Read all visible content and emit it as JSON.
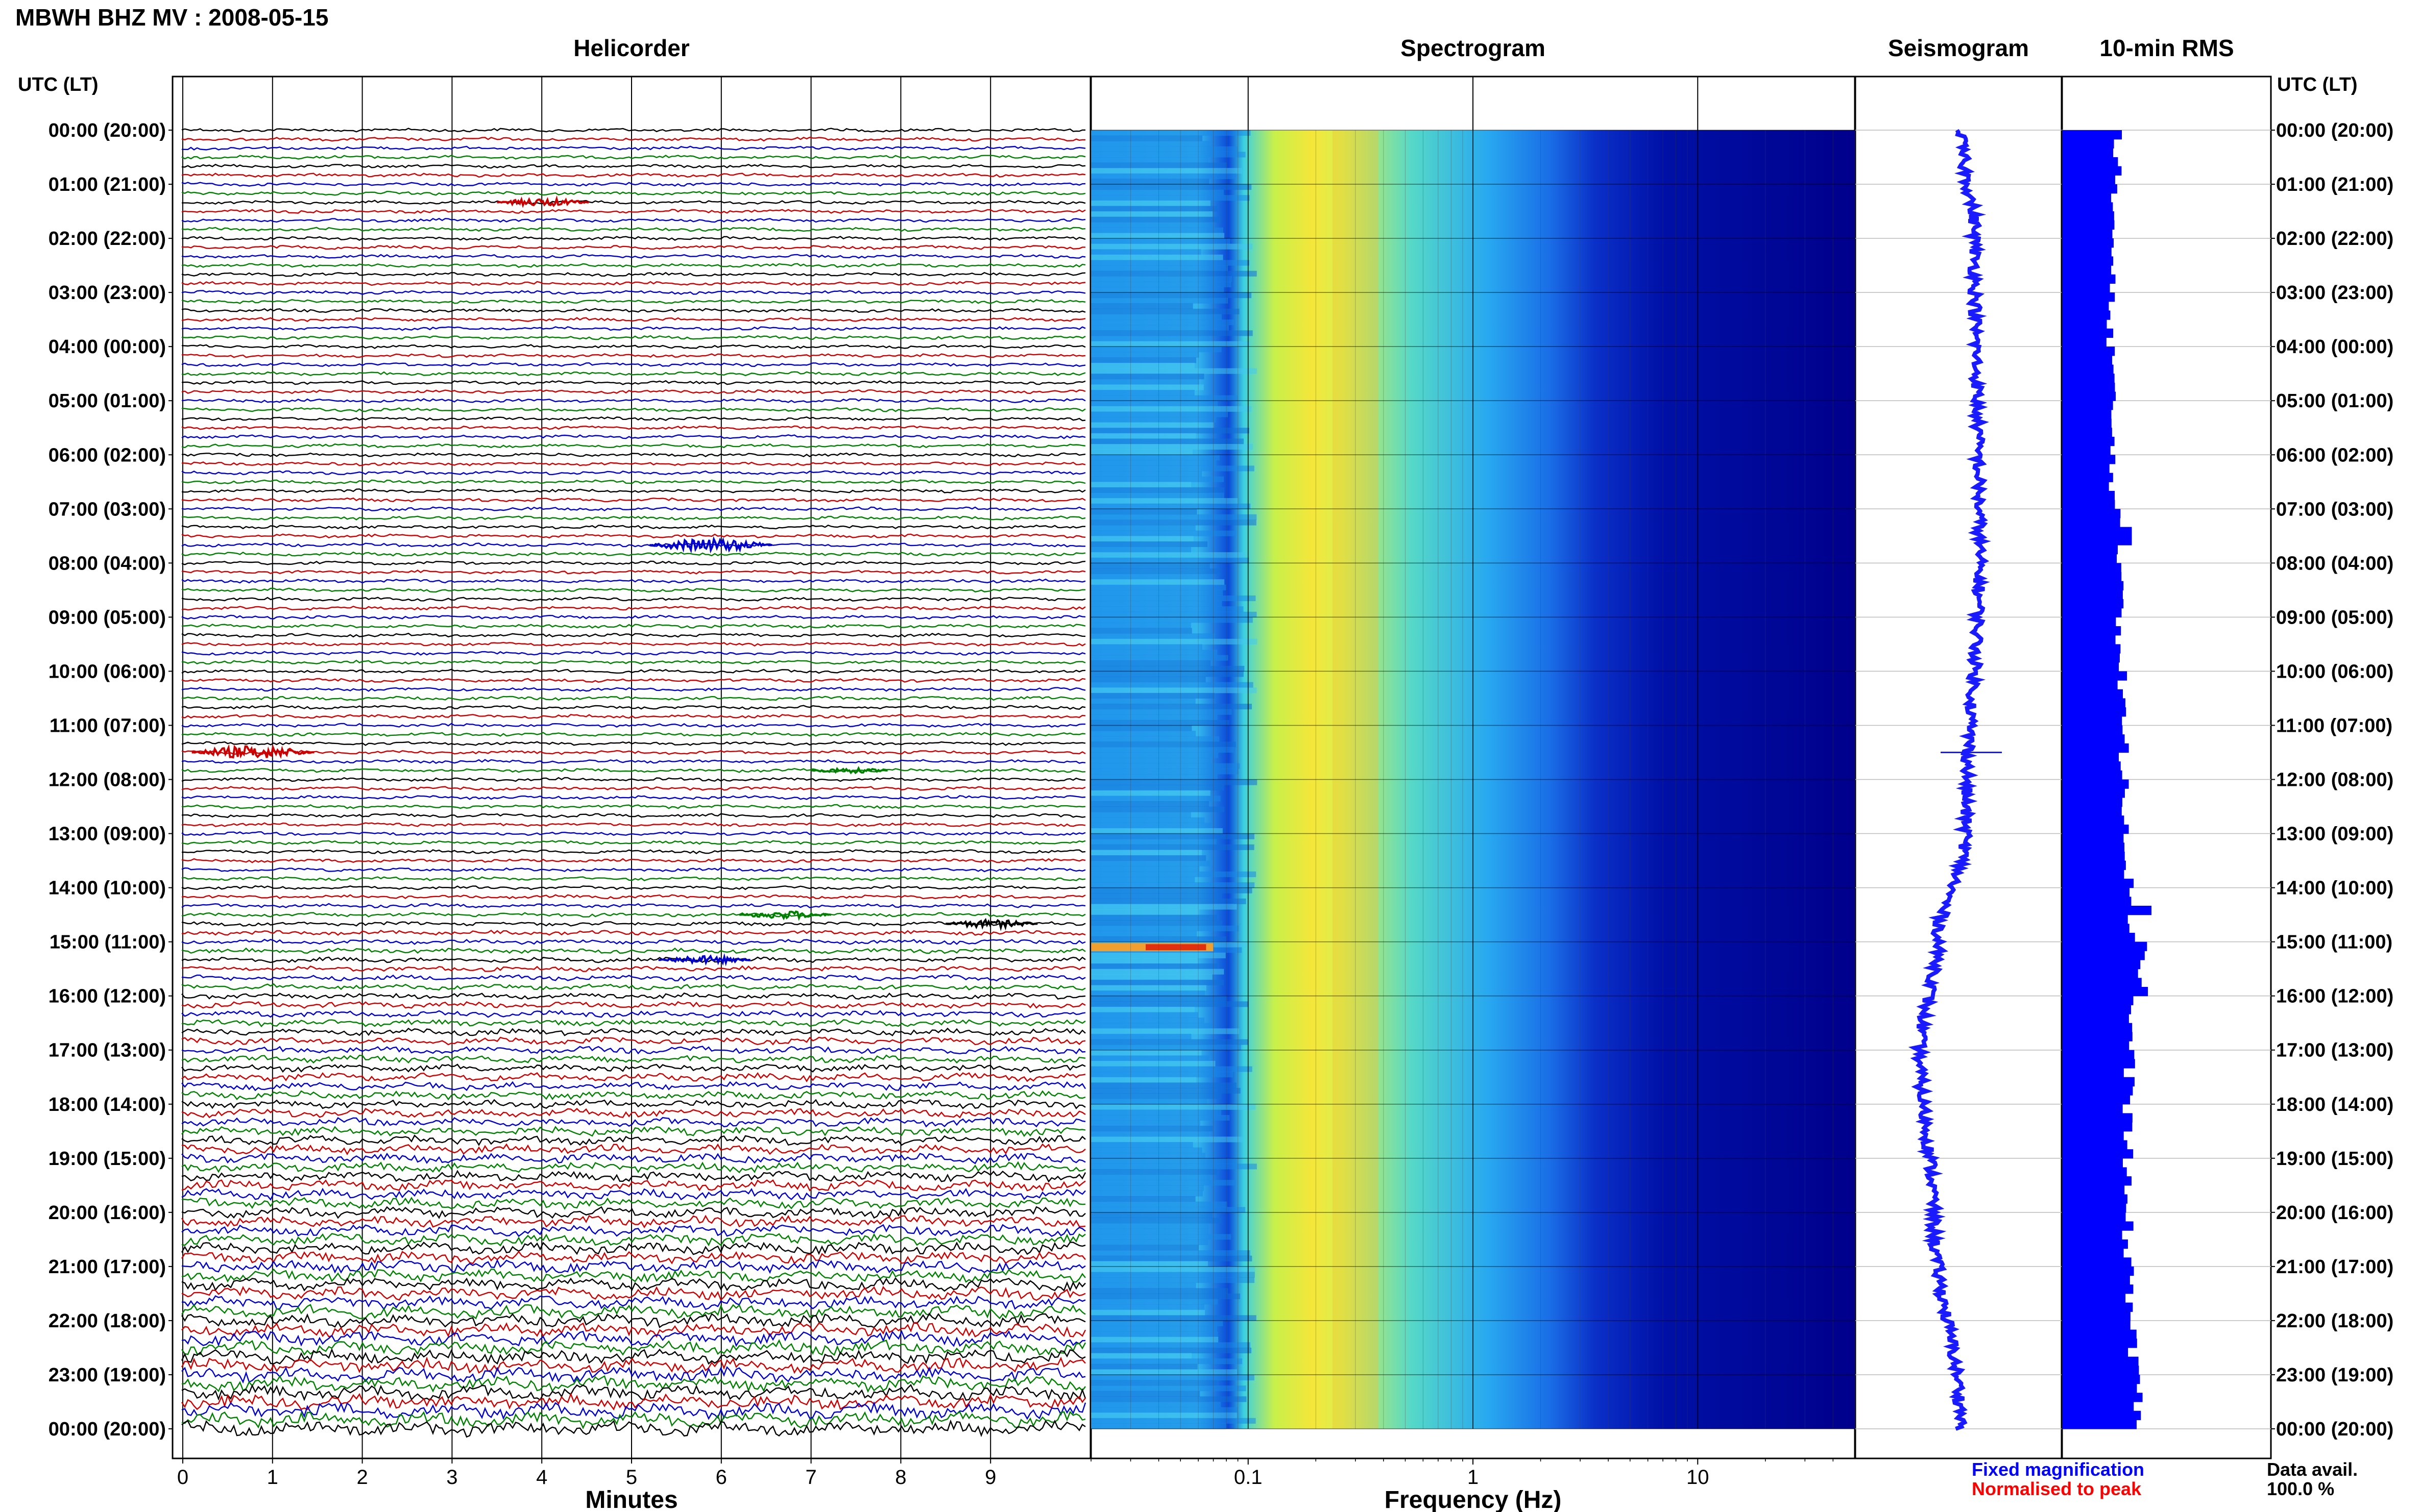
{
  "header": {
    "station": "MBWH BHZ MV : 2008-05-15",
    "utc_label_left": "UTC (LT)",
    "utc_label_right": "UTC (LT)"
  },
  "panels": {
    "helicorder": "Helicorder",
    "spectrogram": "Spectrogram",
    "seismogram": "Seismogram",
    "rms": "10-min RMS"
  },
  "axes": {
    "minutes_label": "Minutes",
    "frequency_label": "Frequency (Hz)",
    "minute_ticks": [
      "0",
      "1",
      "2",
      "3",
      "4",
      "5",
      "6",
      "7",
      "8",
      "9"
    ],
    "frequency_ticks": [
      "0.1",
      "1",
      "10"
    ]
  },
  "time_labels": [
    "00:00 (20:00)",
    "01:00 (21:00)",
    "02:00 (22:00)",
    "03:00 (23:00)",
    "04:00 (00:00)",
    "05:00 (01:00)",
    "06:00 (02:00)",
    "07:00 (03:00)",
    "08:00 (04:00)",
    "09:00 (05:00)",
    "10:00 (06:00)",
    "11:00 (07:00)",
    "12:00 (08:00)",
    "13:00 (09:00)",
    "14:00 (10:00)",
    "15:00 (11:00)",
    "16:00 (12:00)",
    "17:00 (13:00)",
    "18:00 (14:00)",
    "19:00 (15:00)",
    "20:00 (16:00)",
    "21:00 (17:00)",
    "22:00 (18:00)",
    "23:00 (19:00)",
    "00:00 (20:00)"
  ],
  "legend": {
    "fixed": "Fixed magnification",
    "normalised": "Normalised to peak",
    "data_avail_label": "Data avail.",
    "data_avail_value": "100.0 %"
  },
  "colors": {
    "trace_cycle": [
      "#000000",
      "#cc0000",
      "#0000cc",
      "#008000"
    ],
    "fixed_text": "#0000ff",
    "normalised_text": "#ff0000",
    "rms_bar": "#0000ff",
    "spectrogram_bg": "#00008b"
  },
  "chart_data": [
    {
      "type": "line",
      "title": "Helicorder",
      "xlabel": "Minutes",
      "xlim": [
        0,
        10
      ],
      "rows_per_hour": 6,
      "hours": 24,
      "events": [
        {
          "hour": 1.25,
          "minute": 3.5,
          "amp": 3,
          "color": "#cc0000"
        },
        {
          "hour": 7.65,
          "minute": 5.2,
          "amp": 5,
          "color": "#0000cc"
        },
        {
          "hour": 11.5,
          "minute": 0.1,
          "amp": 5,
          "color": "#cc0000"
        },
        {
          "hour": 11.8,
          "minute": 7.0,
          "amp": 2,
          "color": "#008000"
        },
        {
          "hour": 14.5,
          "minute": 6.2,
          "amp": 3,
          "color": "#008000"
        },
        {
          "hour": 14.7,
          "minute": 8.5,
          "amp": 3,
          "color": "#000000"
        },
        {
          "hour": 15.35,
          "minute": 5.3,
          "amp": 3,
          "color": "#0000cc"
        }
      ]
    },
    {
      "type": "heatmap",
      "title": "Spectrogram",
      "xlabel": "Frequency (Hz)",
      "xscale": "log",
      "xlim": [
        0.02,
        50
      ],
      "peak_frequency_hz": 0.3,
      "high_energy_band_hz": [
        0.12,
        1.2
      ],
      "transient_hour": 15.1
    },
    {
      "type": "line",
      "title": "Seismogram",
      "description_values": "trend of daily long-period drift",
      "offset_by_hour": [
        {
          "hour": 0,
          "offset": 0.0
        },
        {
          "hour": 2,
          "offset": 0.15
        },
        {
          "hour": 8,
          "offset": 0.2
        },
        {
          "hour": 13,
          "offset": 0.05
        },
        {
          "hour": 15,
          "offset": -0.25
        },
        {
          "hour": 17,
          "offset": -0.45
        },
        {
          "hour": 20,
          "offset": -0.3
        },
        {
          "hour": 24,
          "offset": 0.0
        }
      ]
    },
    {
      "type": "bar",
      "title": "10-min RMS",
      "orientation": "horizontal",
      "hourly_mean_rms_relative": [
        0.62,
        0.58,
        0.56,
        0.55,
        0.57,
        0.56,
        0.58,
        0.62,
        0.7,
        0.66,
        0.68,
        0.7,
        0.74,
        0.75,
        0.8,
        0.92,
        0.78,
        0.76,
        0.75,
        0.72,
        0.74,
        0.78,
        0.8,
        0.85
      ],
      "peaks": [
        {
          "hour": 14.3,
          "value": 1.0
        },
        {
          "hour": 15.05,
          "value": 0.95
        },
        {
          "hour": 7.4,
          "value": 0.78
        }
      ]
    }
  ]
}
